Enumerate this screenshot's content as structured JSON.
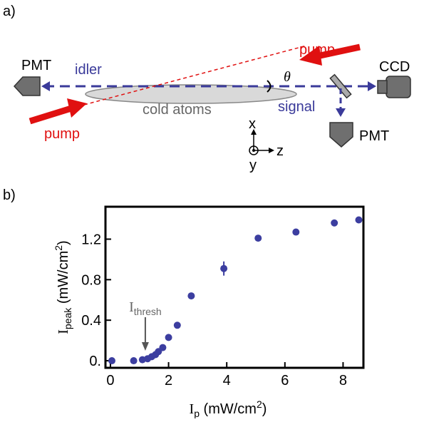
{
  "panel_a": {
    "label": "a)",
    "pump_top": "pump",
    "pmt_left": "PMT",
    "idler": "idler",
    "ccd": "CCD",
    "angle": "θ",
    "cold_atoms": "cold atoms",
    "signal": "signal",
    "pump_bottom": "pump",
    "pmt_bottom": "PMT",
    "axis_x": "x",
    "axis_z": "z",
    "axis_y": "y"
  },
  "chart_data": {
    "type": "scatter",
    "panel_label": "b)",
    "xlabel": [
      "I",
      "p",
      " (mW/cm",
      "2",
      ")"
    ],
    "ylabel": [
      "I",
      "peak",
      " (mW/cm",
      "2",
      ")"
    ],
    "annotation": [
      "I",
      "thresh"
    ],
    "annotation_x": 1.2,
    "x": [
      0.05,
      0.8,
      1.1,
      1.28,
      1.42,
      1.55,
      1.65,
      1.8,
      2.0,
      2.3,
      2.78,
      3.9,
      5.08,
      6.38,
      7.7,
      8.54
    ],
    "values": [
      0.0,
      0.0,
      0.01,
      0.02,
      0.04,
      0.06,
      0.09,
      0.13,
      0.23,
      0.35,
      0.64,
      0.91,
      1.21,
      1.27,
      1.36,
      1.39
    ],
    "errors": [
      null,
      null,
      null,
      null,
      null,
      null,
      null,
      null,
      null,
      null,
      null,
      0.07,
      null,
      null,
      null,
      null
    ],
    "color": "#3c3ea0",
    "xlim": [
      -0.17,
      8.7
    ],
    "ylim": [
      -0.07,
      1.52
    ],
    "xticks": [
      0,
      2,
      4,
      6,
      8
    ],
    "yticks": [
      {
        "value": 0,
        "label": "0."
      },
      0.4,
      0.8,
      1.2
    ]
  }
}
